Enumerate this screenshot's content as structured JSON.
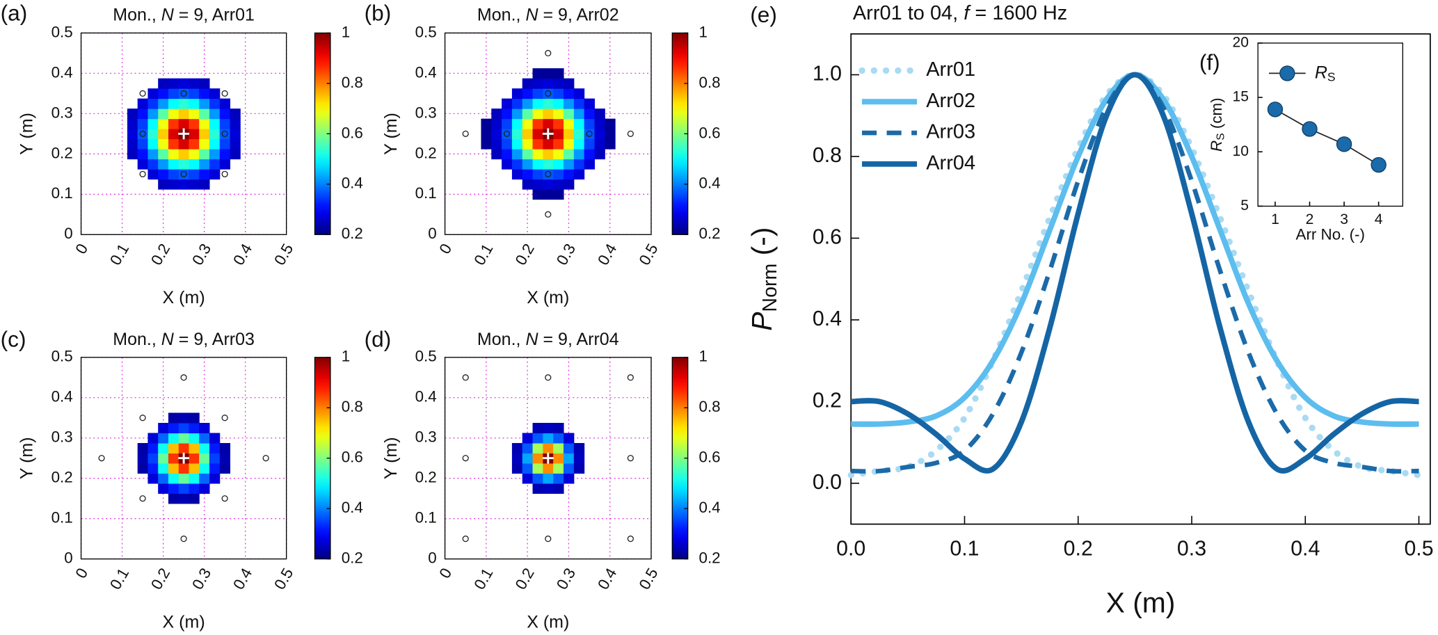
{
  "chart_data": [
    {
      "type": "heatmap",
      "panel": "(a)",
      "title": {
        "pre": "Mon., ",
        "italic": "N",
        "post": " = 9, Arr01"
      },
      "xlabel": "X (m)",
      "ylabel": "Y (m)",
      "xlim": [
        0,
        0.5
      ],
      "ylim": [
        0,
        0.5
      ],
      "xticks": [
        0,
        0.1,
        0.2,
        0.3,
        0.4,
        0.5
      ],
      "yticks": [
        0,
        0.1,
        0.2,
        0.3,
        0.4,
        0.5
      ],
      "grid": true,
      "colormap": "jet",
      "clim": [
        0.2,
        1
      ],
      "cticks": [
        0.2,
        0.4,
        0.6,
        0.8,
        1
      ],
      "x": [
        0.125,
        0.15,
        0.175,
        0.2,
        0.225,
        0.25,
        0.275,
        0.3,
        0.325,
        0.35,
        0.375
      ],
      "y": [
        0.125,
        0.15,
        0.175,
        0.2,
        0.225,
        0.25,
        0.275,
        0.3,
        0.325,
        0.35,
        0.375
      ],
      "z": [
        [
          null,
          null,
          null,
          0.25,
          0.26,
          0.27,
          0.26,
          0.25,
          null,
          null,
          null
        ],
        [
          null,
          null,
          0.27,
          0.31,
          0.35,
          0.37,
          0.35,
          0.31,
          0.27,
          null,
          null
        ],
        [
          null,
          0.27,
          0.34,
          0.42,
          0.5,
          0.53,
          0.5,
          0.42,
          0.34,
          0.27,
          null
        ],
        [
          0.25,
          0.31,
          0.42,
          0.57,
          0.69,
          0.74,
          0.69,
          0.57,
          0.42,
          0.31,
          0.25
        ],
        [
          0.26,
          0.35,
          0.5,
          0.69,
          0.86,
          0.93,
          0.86,
          0.69,
          0.5,
          0.35,
          0.26
        ],
        [
          0.27,
          0.37,
          0.53,
          0.74,
          0.93,
          1,
          0.93,
          0.74,
          0.53,
          0.37,
          0.27
        ],
        [
          0.26,
          0.35,
          0.5,
          0.69,
          0.86,
          0.93,
          0.86,
          0.69,
          0.5,
          0.35,
          0.26
        ],
        [
          0.25,
          0.31,
          0.42,
          0.57,
          0.69,
          0.74,
          0.69,
          0.57,
          0.42,
          0.31,
          0.25
        ],
        [
          null,
          0.27,
          0.34,
          0.42,
          0.5,
          0.53,
          0.5,
          0.42,
          0.34,
          0.27,
          null
        ],
        [
          null,
          null,
          0.27,
          0.31,
          0.35,
          0.37,
          0.35,
          0.31,
          0.27,
          null,
          null
        ],
        [
          null,
          null,
          null,
          0.25,
          0.26,
          0.27,
          0.26,
          0.25,
          null,
          null,
          null
        ]
      ],
      "sources": {
        "x": [
          0.15,
          0.25,
          0.35,
          0.15,
          0.35,
          0.15,
          0.25,
          0.35
        ],
        "y": [
          0.35,
          0.35,
          0.35,
          0.25,
          0.25,
          0.15,
          0.15,
          0.15
        ]
      },
      "center": {
        "x": 0.25,
        "y": 0.25
      }
    },
    {
      "type": "heatmap",
      "panel": "(b)",
      "title": {
        "pre": "Mon., ",
        "italic": "N",
        "post": " = 9, Arr02"
      },
      "xlabel": "X (m)",
      "ylabel": "Y (m)",
      "xlim": [
        0,
        0.5
      ],
      "ylim": [
        0,
        0.5
      ],
      "xticks": [
        0,
        0.1,
        0.2,
        0.3,
        0.4,
        0.5
      ],
      "yticks": [
        0,
        0.1,
        0.2,
        0.3,
        0.4,
        0.5
      ],
      "grid": true,
      "colormap": "jet",
      "clim": [
        0.2,
        1
      ],
      "cticks": [
        0.2,
        0.4,
        0.6,
        0.8,
        1
      ],
      "x": [
        0.1,
        0.125,
        0.15,
        0.175,
        0.2,
        0.225,
        0.25,
        0.275,
        0.3,
        0.325,
        0.35,
        0.375,
        0.4
      ],
      "y": [
        0.1,
        0.125,
        0.15,
        0.175,
        0.2,
        0.225,
        0.25,
        0.275,
        0.3,
        0.325,
        0.35,
        0.375,
        0.4
      ],
      "z": [
        [
          null,
          null,
          null,
          null,
          null,
          0.22,
          0.22,
          0.22,
          null,
          null,
          null,
          null,
          null
        ],
        [
          null,
          null,
          null,
          null,
          0.25,
          0.26,
          0.27,
          0.26,
          0.25,
          null,
          null,
          null,
          null
        ],
        [
          null,
          null,
          null,
          0.27,
          0.31,
          0.35,
          0.37,
          0.35,
          0.31,
          0.27,
          null,
          null,
          null
        ],
        [
          null,
          null,
          0.27,
          0.34,
          0.42,
          0.5,
          0.53,
          0.5,
          0.42,
          0.34,
          0.27,
          null,
          null
        ],
        [
          null,
          0.25,
          0.31,
          0.42,
          0.57,
          0.69,
          0.74,
          0.69,
          0.57,
          0.42,
          0.31,
          0.25,
          null
        ],
        [
          0.22,
          0.26,
          0.35,
          0.5,
          0.69,
          0.86,
          0.93,
          0.86,
          0.69,
          0.5,
          0.35,
          0.26,
          0.22
        ],
        [
          0.22,
          0.27,
          0.37,
          0.53,
          0.74,
          0.93,
          1,
          0.93,
          0.74,
          0.53,
          0.37,
          0.27,
          0.22
        ],
        [
          0.22,
          0.26,
          0.35,
          0.5,
          0.69,
          0.86,
          0.93,
          0.86,
          0.69,
          0.5,
          0.35,
          0.26,
          0.22
        ],
        [
          null,
          0.25,
          0.31,
          0.42,
          0.57,
          0.69,
          0.74,
          0.69,
          0.57,
          0.42,
          0.31,
          0.25,
          null
        ],
        [
          null,
          null,
          0.27,
          0.34,
          0.42,
          0.5,
          0.53,
          0.5,
          0.42,
          0.34,
          0.27,
          null,
          null
        ],
        [
          null,
          null,
          null,
          0.27,
          0.31,
          0.35,
          0.37,
          0.35,
          0.31,
          0.27,
          null,
          null,
          null
        ],
        [
          null,
          null,
          null,
          null,
          0.25,
          0.26,
          0.27,
          0.26,
          0.25,
          null,
          null,
          null,
          null
        ],
        [
          null,
          null,
          null,
          null,
          null,
          0.22,
          0.22,
          0.22,
          null,
          null,
          null,
          null,
          null
        ]
      ],
      "sources": {
        "x": [
          0.25,
          0.25,
          0.05,
          0.15,
          0.35,
          0.45,
          0.25,
          0.25
        ],
        "y": [
          0.45,
          0.35,
          0.25,
          0.25,
          0.25,
          0.25,
          0.15,
          0.05
        ]
      },
      "center": {
        "x": 0.25,
        "y": 0.25
      }
    },
    {
      "type": "heatmap",
      "panel": "(c)",
      "title": {
        "pre": "Mon., ",
        "italic": "N",
        "post": " = 9, Arr03"
      },
      "xlabel": "X (m)",
      "ylabel": "Y (m)",
      "xlim": [
        0,
        0.5
      ],
      "ylim": [
        0,
        0.5
      ],
      "xticks": [
        0,
        0.1,
        0.2,
        0.3,
        0.4,
        0.5
      ],
      "yticks": [
        0,
        0.1,
        0.2,
        0.3,
        0.4,
        0.5
      ],
      "grid": true,
      "colormap": "jet",
      "clim": [
        0.2,
        1
      ],
      "cticks": [
        0.2,
        0.4,
        0.6,
        0.8,
        1
      ],
      "x": [
        0.15,
        0.175,
        0.2,
        0.225,
        0.25,
        0.275,
        0.3,
        0.325,
        0.35
      ],
      "y": [
        0.15,
        0.175,
        0.2,
        0.225,
        0.25,
        0.275,
        0.3,
        0.325,
        0.35
      ],
      "z": [
        [
          null,
          null,
          null,
          0.23,
          0.24,
          0.23,
          null,
          null,
          null
        ],
        [
          null,
          null,
          0.27,
          0.32,
          0.35,
          0.32,
          0.27,
          null,
          null
        ],
        [
          null,
          0.27,
          0.38,
          0.51,
          0.58,
          0.51,
          0.38,
          0.27,
          null
        ],
        [
          0.23,
          0.32,
          0.51,
          0.75,
          0.86,
          0.75,
          0.51,
          0.32,
          0.23
        ],
        [
          0.24,
          0.35,
          0.58,
          0.86,
          1,
          0.86,
          0.58,
          0.35,
          0.24
        ],
        [
          0.23,
          0.32,
          0.51,
          0.75,
          0.86,
          0.75,
          0.51,
          0.32,
          0.23
        ],
        [
          null,
          0.27,
          0.38,
          0.51,
          0.58,
          0.51,
          0.38,
          0.27,
          null
        ],
        [
          null,
          null,
          0.27,
          0.32,
          0.35,
          0.32,
          0.27,
          null,
          null
        ],
        [
          null,
          null,
          null,
          0.23,
          0.24,
          0.23,
          null,
          null,
          null
        ]
      ],
      "sources": {
        "x": [
          0.25,
          0.15,
          0.35,
          0.05,
          0.45,
          0.15,
          0.35,
          0.25
        ],
        "y": [
          0.45,
          0.35,
          0.35,
          0.25,
          0.25,
          0.15,
          0.15,
          0.05
        ]
      },
      "center": {
        "x": 0.25,
        "y": 0.25
      }
    },
    {
      "type": "heatmap",
      "panel": "(d)",
      "title": {
        "pre": "Mon., ",
        "italic": "N",
        "post": " = 9, Arr04"
      },
      "xlabel": "X (m)",
      "ylabel": "Y (m)",
      "xlim": [
        0,
        0.5
      ],
      "ylim": [
        0,
        0.5
      ],
      "xticks": [
        0,
        0.1,
        0.2,
        0.3,
        0.4,
        0.5
      ],
      "yticks": [
        0,
        0.1,
        0.2,
        0.3,
        0.4,
        0.5
      ],
      "grid": true,
      "colormap": "jet",
      "clim": [
        0.2,
        1
      ],
      "cticks": [
        0.2,
        0.4,
        0.6,
        0.8,
        1
      ],
      "x": [
        0.175,
        0.2,
        0.225,
        0.25,
        0.275,
        0.3,
        0.325
      ],
      "y": [
        0.175,
        0.2,
        0.225,
        0.25,
        0.275,
        0.3,
        0.325
      ],
      "z": [
        [
          null,
          null,
          0.24,
          0.25,
          0.24,
          null,
          null
        ],
        [
          null,
          0.27,
          0.37,
          0.43,
          0.37,
          0.27,
          null
        ],
        [
          0.24,
          0.37,
          0.63,
          0.79,
          0.63,
          0.37,
          0.24
        ],
        [
          0.25,
          0.43,
          0.79,
          1,
          0.79,
          0.43,
          0.25
        ],
        [
          0.24,
          0.37,
          0.63,
          0.79,
          0.63,
          0.37,
          0.24
        ],
        [
          null,
          0.27,
          0.37,
          0.43,
          0.37,
          0.27,
          null
        ],
        [
          null,
          null,
          0.24,
          0.25,
          0.24,
          null,
          null
        ]
      ],
      "sources": {
        "x": [
          0.05,
          0.25,
          0.45,
          0.05,
          0.45,
          0.05,
          0.25,
          0.45
        ],
        "y": [
          0.45,
          0.45,
          0.45,
          0.25,
          0.25,
          0.05,
          0.05,
          0.05
        ]
      },
      "center": {
        "x": 0.25,
        "y": 0.25
      }
    },
    {
      "type": "line",
      "panel": "(e)",
      "title": {
        "pre": "Arr01 to 04, ",
        "italic": "f",
        "post": " = 1600 Hz"
      },
      "xlabel": "X (m)",
      "ylabel": {
        "main": "P",
        "sub": "Norm",
        "post": " (-)"
      },
      "xlim": [
        0,
        0.51
      ],
      "ylim": [
        -0.1,
        1.1
      ],
      "xticks": [
        {
          "value": 0,
          "label": "0.0"
        },
        0.1,
        0.2,
        0.3,
        0.4,
        0.5
      ],
      "yticks": [
        {
          "value": 0,
          "label": "0.0"
        },
        0.2,
        0.4,
        0.6,
        0.8,
        {
          "value": 1,
          "label": "1.0"
        }
      ],
      "legend": "upper left",
      "x": [
        0,
        0.025,
        0.05,
        0.075,
        0.1,
        0.125,
        0.15,
        0.175,
        0.2,
        0.225,
        0.25,
        0.275,
        0.3,
        0.325,
        0.35,
        0.375,
        0.4,
        0.425,
        0.45,
        0.475,
        0.5
      ],
      "series": [
        {
          "name": "Arr01",
          "color": "#a9daf3",
          "style": "dotted",
          "values": [
            0.02,
            0.03,
            0.04,
            0.08,
            0.16,
            0.3,
            0.47,
            0.65,
            0.82,
            0.95,
            1,
            0.95,
            0.82,
            0.65,
            0.47,
            0.3,
            0.16,
            0.08,
            0.04,
            0.03,
            0.02
          ]
        },
        {
          "name": "Arr02",
          "color": "#5cbdee",
          "style": "solid",
          "values": [
            0.145,
            0.145,
            0.15,
            0.165,
            0.21,
            0.3,
            0.44,
            0.62,
            0.8,
            0.94,
            1,
            0.94,
            0.8,
            0.62,
            0.44,
            0.3,
            0.21,
            0.165,
            0.15,
            0.145,
            0.145
          ]
        },
        {
          "name": "Arr03",
          "color": "#1b6aa9",
          "style": "dashed",
          "values": [
            0.03,
            0.03,
            0.04,
            0.05,
            0.08,
            0.17,
            0.32,
            0.52,
            0.74,
            0.92,
            1,
            0.92,
            0.74,
            0.52,
            0.32,
            0.17,
            0.08,
            0.05,
            0.04,
            0.03,
            0.03
          ]
        },
        {
          "name": "Arr04",
          "color": "#1565a5",
          "style": "solid",
          "values": [
            0.2,
            0.2,
            0.17,
            0.12,
            0.06,
            0.035,
            0.15,
            0.38,
            0.66,
            0.9,
            1,
            0.9,
            0.66,
            0.38,
            0.15,
            0.035,
            0.06,
            0.12,
            0.17,
            0.2,
            0.2
          ]
        }
      ]
    },
    {
      "type": "line",
      "panel": "(f)",
      "markers": true,
      "line_color": "#222222",
      "xlabel": "Arr No. (-)",
      "ylabel": {
        "main": "R",
        "sub": "S",
        "post": " (cm)"
      },
      "xlim": [
        0.5,
        4.7
      ],
      "ylim": [
        5,
        20
      ],
      "xticks": [
        1,
        2,
        3,
        4
      ],
      "yticks": [
        5,
        10,
        15,
        20
      ],
      "legend": "upper left",
      "x": [
        1,
        2,
        3,
        4
      ],
      "series": [
        {
          "name": {
            "main": "R",
            "sub": "S"
          },
          "color": "#1b6aa9",
          "style": "solid",
          "values": [
            13.9,
            12.1,
            10.7,
            8.8
          ]
        }
      ]
    }
  ]
}
